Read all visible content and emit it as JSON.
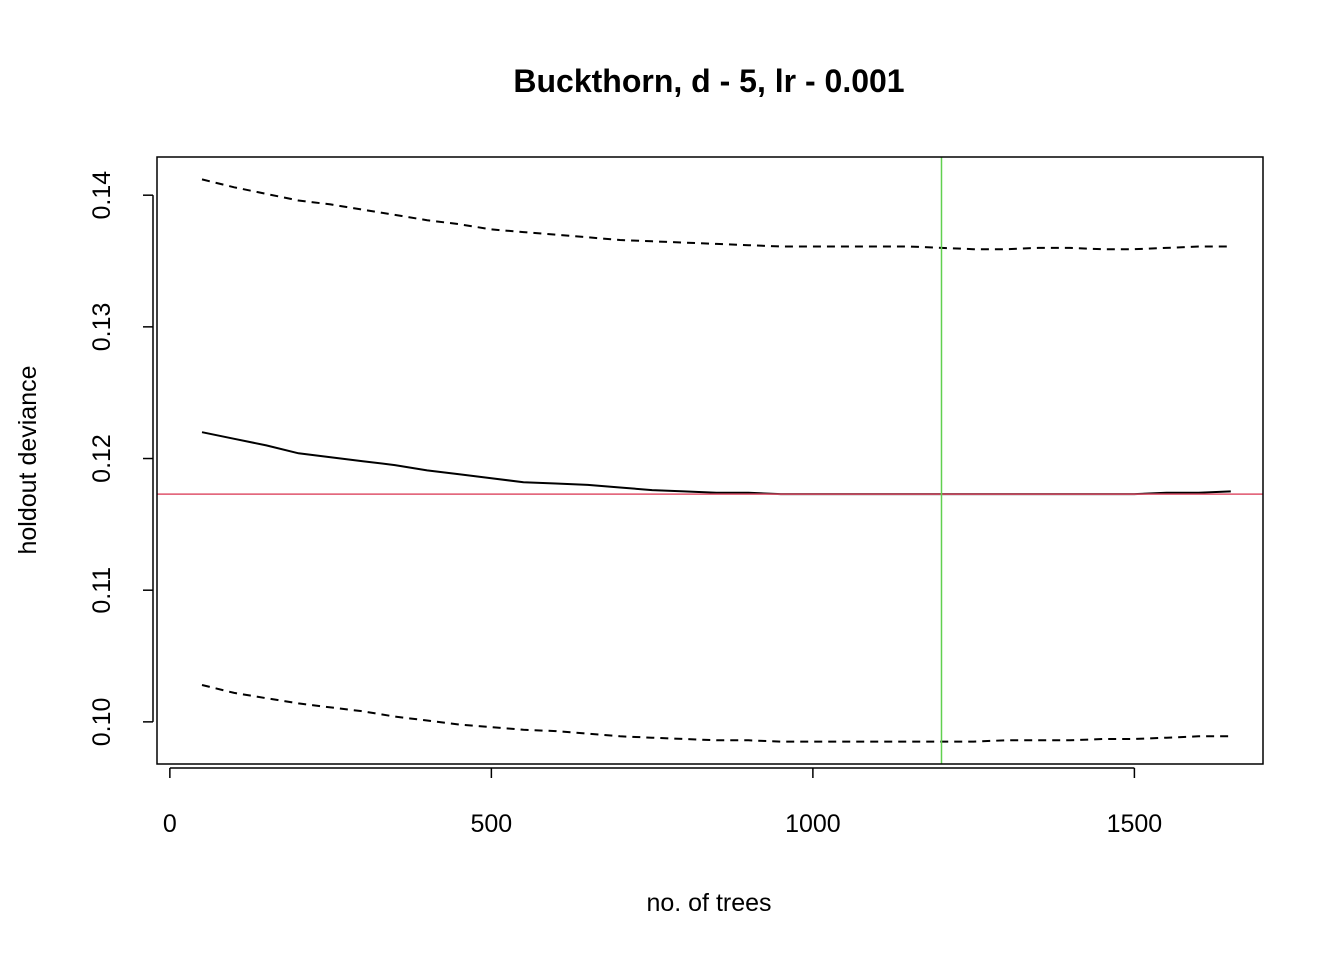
{
  "chart_data": {
    "type": "line",
    "title": "Buckthorn, d - 5, lr - 0.001",
    "xlabel": "no. of trees",
    "ylabel": "holdout deviance",
    "xlim": [
      -20,
      1700
    ],
    "ylim": [
      0.0968,
      0.1429
    ],
    "x_ticks": [
      0,
      500,
      1000,
      1500
    ],
    "x_tick_labels": [
      "0",
      "500",
      "1000",
      "1500"
    ],
    "y_ticks": [
      0.1,
      0.11,
      0.12,
      0.13,
      0.14
    ],
    "y_tick_labels": [
      "0.10",
      "0.11",
      "0.12",
      "0.13",
      "0.14"
    ],
    "grid": false,
    "series": [
      {
        "role": "mean",
        "line_style": "solid",
        "color": "#000000",
        "x": [
          50,
          100,
          150,
          200,
          250,
          300,
          350,
          400,
          450,
          500,
          550,
          600,
          650,
          700,
          750,
          800,
          850,
          900,
          950,
          1000,
          1050,
          1100,
          1150,
          1200,
          1250,
          1300,
          1350,
          1400,
          1450,
          1500,
          1550,
          1600,
          1650
        ],
        "values": [
          0.122,
          0.1215,
          0.121,
          0.1204,
          0.1201,
          0.1198,
          0.1195,
          0.1191,
          0.1188,
          0.1185,
          0.1182,
          0.1181,
          0.118,
          0.1178,
          0.1176,
          0.1175,
          0.1174,
          0.1174,
          0.1173,
          0.1173,
          0.1173,
          0.1173,
          0.1173,
          0.1173,
          0.1173,
          0.1173,
          0.1173,
          0.1173,
          0.1173,
          0.1173,
          0.1174,
          0.1174,
          0.1175
        ]
      },
      {
        "role": "upper",
        "line_style": "dashed",
        "color": "#000000",
        "x": [
          50,
          100,
          150,
          200,
          250,
          300,
          350,
          400,
          450,
          500,
          550,
          600,
          650,
          700,
          750,
          800,
          850,
          900,
          950,
          1000,
          1050,
          1100,
          1150,
          1200,
          1250,
          1300,
          1350,
          1400,
          1450,
          1500,
          1550,
          1600,
          1650
        ],
        "values": [
          0.1412,
          0.1406,
          0.1401,
          0.1396,
          0.1393,
          0.1389,
          0.1385,
          0.1381,
          0.1378,
          0.1374,
          0.1372,
          0.137,
          0.1368,
          0.1366,
          0.1365,
          0.1364,
          0.1363,
          0.1362,
          0.1361,
          0.1361,
          0.1361,
          0.1361,
          0.1361,
          0.136,
          0.1359,
          0.1359,
          0.136,
          0.136,
          0.1359,
          0.1359,
          0.136,
          0.1361,
          0.1361
        ]
      },
      {
        "role": "lower",
        "line_style": "dashed",
        "color": "#000000",
        "x": [
          50,
          100,
          150,
          200,
          250,
          300,
          350,
          400,
          450,
          500,
          550,
          600,
          650,
          700,
          750,
          800,
          850,
          900,
          950,
          1000,
          1050,
          1100,
          1150,
          1200,
          1250,
          1300,
          1350,
          1400,
          1450,
          1500,
          1550,
          1600,
          1650
        ],
        "values": [
          0.1028,
          0.1022,
          0.1018,
          0.1014,
          0.1011,
          0.1008,
          0.1004,
          0.1001,
          0.0998,
          0.0996,
          0.0994,
          0.0993,
          0.0991,
          0.0989,
          0.0988,
          0.0987,
          0.0986,
          0.0986,
          0.0985,
          0.0985,
          0.0985,
          0.0985,
          0.0985,
          0.0985,
          0.0985,
          0.0986,
          0.0986,
          0.0986,
          0.0987,
          0.0987,
          0.0988,
          0.0989,
          0.0989
        ]
      }
    ],
    "reference_lines": [
      {
        "orientation": "horizontal",
        "value": 0.1173,
        "color": "#DF536B"
      },
      {
        "orientation": "vertical",
        "value": 1200,
        "color": "#61D04F"
      }
    ],
    "colors": {
      "series": "#000000",
      "horizontal_ref": "#DF536B",
      "vertical_ref": "#61D04F",
      "frame": "#000000",
      "background": "#ffffff"
    }
  }
}
